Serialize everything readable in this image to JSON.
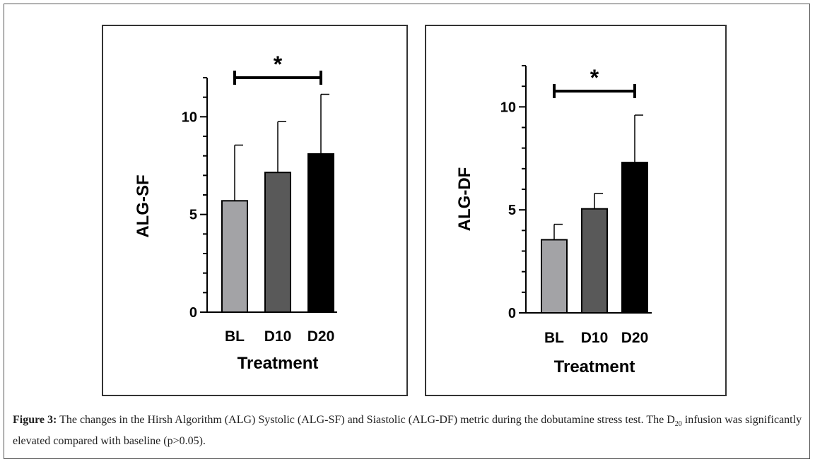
{
  "chart_data": [
    {
      "type": "bar",
      "categories": [
        "BL",
        "D10",
        "D20"
      ],
      "values": [
        5.7,
        7.15,
        8.1
      ],
      "error_upper": [
        8.55,
        9.75,
        11.15
      ],
      "colors": [
        "#a3a3a6",
        "#595959",
        "#000000"
      ],
      "xlabel": "Treatment",
      "ylabel": "ALG-SF",
      "ylim": [
        0,
        12
      ],
      "yticks": [
        "0",
        "5",
        "10"
      ],
      "annotation": {
        "text": "*",
        "from": "BL",
        "to": "D20"
      }
    },
    {
      "type": "bar",
      "categories": [
        "BL",
        "D10",
        "D20"
      ],
      "values": [
        3.55,
        5.05,
        7.3
      ],
      "error_upper": [
        4.3,
        5.8,
        9.6
      ],
      "colors": [
        "#a3a3a6",
        "#595959",
        "#000000"
      ],
      "xlabel": "Treatment",
      "ylabel": "ALG-DF",
      "ylim": [
        0,
        12
      ],
      "yticks": [
        "0",
        "5",
        "10"
      ],
      "annotation": {
        "text": "*",
        "from": "BL",
        "to": "D20"
      }
    }
  ],
  "caption": {
    "label": "Figure 3:",
    "text_before_sub": " The changes in the Hirsh Algorithm (ALG) Systolic (ALG-SF) and Siastolic (ALG-DF) metric during the dobutamine stress test. The D",
    "sub": "20",
    "text_after_sub": " infusion was significantly elevated compared with baseline (p>0.05)."
  }
}
